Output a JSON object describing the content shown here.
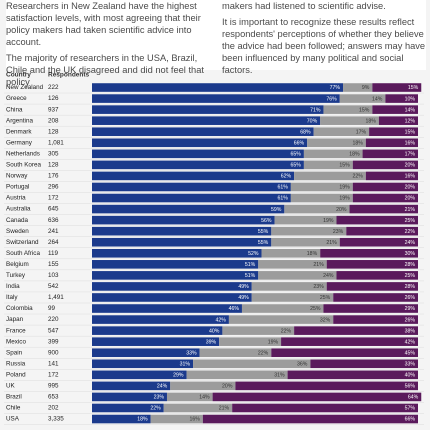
{
  "intro": {
    "left": [
      "Researchers in New Zealand have the highest satisfaction levels, with most agreeing that their policy makers had taken scientific advice into account.",
      "The majority of researchers in the USA, Brazil, Chile and the UK disagreed and did not feel that policy"
    ],
    "right": [
      "makers had listened to scientific advise.",
      "It is important to recognize these results reflect respondents' perceptions of whether they believe the advice had been followed; answers may have been influenced by many political and social factors."
    ]
  },
  "chart_data": {
    "type": "stacked-bar-horizontal",
    "country_header": "Country",
    "respondents_header": "Respondents",
    "categories": [
      "New Zealand",
      "Greece",
      "China",
      "Argentina",
      "Denmark",
      "Germany",
      "Netherlands",
      "South Korea",
      "Norway",
      "Portugal",
      "Austria",
      "Australia",
      "Canada",
      "Sweden",
      "Switzerland",
      "South Africa",
      "Belgium",
      "Turkey",
      "India",
      "Italy",
      "Colombia",
      "Japan",
      "France",
      "Mexico",
      "Spain",
      "Russia",
      "Poland",
      "UK",
      "Brazil",
      "Chile",
      "USA"
    ],
    "respondents": [
      "222",
      "126",
      "937",
      "208",
      "128",
      "1,081",
      "305",
      "128",
      "176",
      "296",
      "172",
      "645",
      "636",
      "241",
      "264",
      "119",
      "155",
      "103",
      "542",
      "1,491",
      "99",
      "220",
      "547",
      "399",
      "900",
      "141",
      "172",
      "995",
      "653",
      "202",
      "3,335"
    ],
    "xlim": [
      0,
      100
    ],
    "series": [
      {
        "color": "#1b3a8c",
        "label_color": "#ffffff",
        "values": [
          77,
          76,
          71,
          70,
          68,
          66,
          65,
          65,
          62,
          61,
          61,
          59,
          56,
          55,
          55,
          52,
          51,
          51,
          49,
          49,
          46,
          42,
          40,
          39,
          33,
          31,
          29,
          24,
          23,
          22,
          18
        ],
        "value_labels": [
          "77%",
          "76%",
          "71%",
          "70%",
          "68%",
          "66%",
          "65%",
          "65%",
          "62%",
          "61%",
          "61%",
          "59%",
          "56%",
          "55%",
          "55%",
          "52%",
          "51%",
          "51%",
          "49%",
          "49%",
          "46%",
          "42%",
          "40%",
          "39%",
          "33%",
          "31%",
          "29%",
          "24%",
          "23%",
          "22%",
          "18%"
        ]
      },
      {
        "color": "#9c9c9c",
        "label_color": "#333333",
        "values": [
          9,
          14,
          15,
          18,
          17,
          18,
          18,
          15,
          22,
          19,
          19,
          20,
          19,
          23,
          21,
          18,
          21,
          24,
          23,
          25,
          25,
          32,
          22,
          19,
          22,
          36,
          31,
          20,
          14,
          21,
          16
        ],
        "value_labels": [
          "9%",
          "14%",
          "15%",
          "18%",
          "17%",
          "18%",
          "18%",
          "15%",
          "22%",
          "19%",
          "19%",
          "20%",
          "19%",
          "23%",
          "21%",
          "18%",
          "21%",
          "24%",
          "23%",
          "25%",
          "25%",
          "32%",
          "22%",
          "19%",
          "22%",
          "36%",
          "31%",
          "20%",
          "14%",
          "21%",
          "16%"
        ]
      },
      {
        "color": "#5a1a5c",
        "label_color": "#ffffff",
        "values": [
          15,
          10,
          14,
          12,
          15,
          16,
          17,
          20,
          16,
          20,
          20,
          21,
          25,
          22,
          24,
          30,
          28,
          25,
          28,
          26,
          29,
          26,
          38,
          42,
          45,
          33,
          40,
          56,
          64,
          57,
          66
        ],
        "value_labels": [
          "15%",
          "10%",
          "14%",
          "12%",
          "15%",
          "16%",
          "17%",
          "20%",
          "16%",
          "20%",
          "20%",
          "21%",
          "25%",
          "22%",
          "24%",
          "30%",
          "28%",
          "25%",
          "28%",
          "26%",
          "29%",
          "26%",
          "38%",
          "42%",
          "45%",
          "33%",
          "40%",
          "56%",
          "64%",
          "57%",
          "66%"
        ]
      }
    ]
  }
}
